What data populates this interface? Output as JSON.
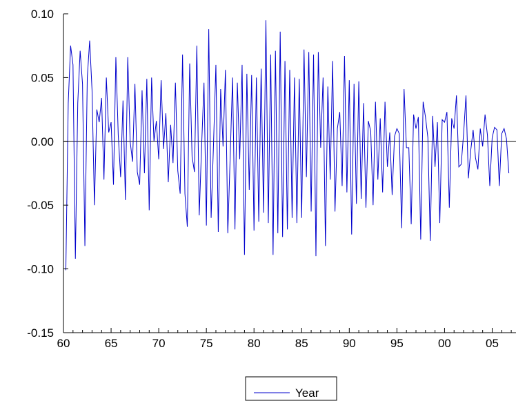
{
  "chart_data": {
    "type": "line",
    "title": "",
    "xlabel": "",
    "ylabel": "",
    "ylim": [
      -0.15,
      0.1
    ],
    "xlim": [
      1960,
      2007.5
    ],
    "yticks": [
      0.1,
      0.05,
      0.0,
      -0.05,
      -0.1,
      -0.15
    ],
    "ytick_labels": [
      "0.10",
      "0.05",
      "0.00",
      "-0.05",
      "-0.10",
      "-0.15"
    ],
    "xticks": [
      1960,
      1965,
      1970,
      1975,
      1980,
      1985,
      1990,
      1995,
      2000,
      2005
    ],
    "xtick_labels": [
      "60",
      "65",
      "70",
      "75",
      "80",
      "85",
      "90",
      "95",
      "00",
      "05"
    ],
    "zero_line": true,
    "grid": false,
    "legend_position": "bottom-center",
    "series": [
      {
        "name": "Year",
        "color": "#0000cc",
        "frequency": "quarterly",
        "start": 1960.25,
        "values": [
          -0.101,
          0.03,
          0.075,
          0.06,
          -0.092,
          0.03,
          0.071,
          0.045,
          -0.082,
          0.05,
          0.079,
          0.04,
          -0.05,
          0.025,
          0.015,
          0.034,
          -0.03,
          0.05,
          0.007,
          0.015,
          -0.034,
          0.066,
          0.005,
          -0.028,
          0.032,
          -0.046,
          0.066,
          0.0,
          -0.016,
          0.045,
          -0.024,
          -0.034,
          0.04,
          -0.025,
          0.049,
          -0.054,
          0.05,
          0.0,
          0.016,
          -0.014,
          0.048,
          -0.006,
          0.022,
          -0.032,
          0.013,
          -0.017,
          0.046,
          -0.023,
          -0.041,
          0.068,
          -0.041,
          -0.067,
          0.061,
          -0.012,
          -0.024,
          0.075,
          -0.058,
          -0.004,
          0.046,
          -0.066,
          0.088,
          -0.06,
          -0.002,
          0.06,
          -0.071,
          0.041,
          -0.004,
          0.056,
          -0.072,
          -0.012,
          0.05,
          -0.069,
          0.046,
          -0.014,
          0.06,
          -0.089,
          0.053,
          -0.038,
          0.052,
          -0.07,
          0.05,
          -0.063,
          0.057,
          -0.056,
          0.095,
          -0.064,
          0.068,
          -0.089,
          0.071,
          -0.072,
          0.086,
          -0.075,
          0.063,
          -0.069,
          0.056,
          -0.06,
          0.05,
          -0.064,
          0.049,
          -0.06,
          0.072,
          -0.028,
          0.07,
          -0.055,
          0.068,
          -0.09,
          0.07,
          -0.005,
          0.05,
          -0.082,
          0.043,
          -0.03,
          0.063,
          -0.055,
          0.01,
          0.023,
          -0.035,
          0.067,
          -0.04,
          0.048,
          -0.073,
          0.045,
          -0.049,
          0.047,
          -0.045,
          0.03,
          -0.052,
          0.016,
          0.008,
          -0.05,
          0.031,
          -0.03,
          0.018,
          -0.04,
          0.031,
          -0.02,
          0.007,
          -0.042,
          0.004,
          0.01,
          0.006,
          -0.068,
          0.041,
          -0.005,
          -0.005,
          -0.065,
          0.021,
          0.01,
          0.019,
          -0.077,
          0.031,
          0.019,
          0.003,
          -0.078,
          0.02,
          -0.02,
          0.015,
          -0.064,
          0.017,
          0.015,
          0.023,
          -0.052,
          0.018,
          0.01,
          0.036,
          -0.02,
          -0.018,
          0.006,
          0.036,
          -0.029,
          -0.007,
          0.009,
          -0.013,
          -0.022,
          0.01,
          -0.004,
          0.021,
          0.005,
          -0.035,
          0.003,
          0.011,
          0.009,
          -0.035,
          0.006,
          0.01,
          0.002,
          -0.025
        ]
      }
    ]
  }
}
